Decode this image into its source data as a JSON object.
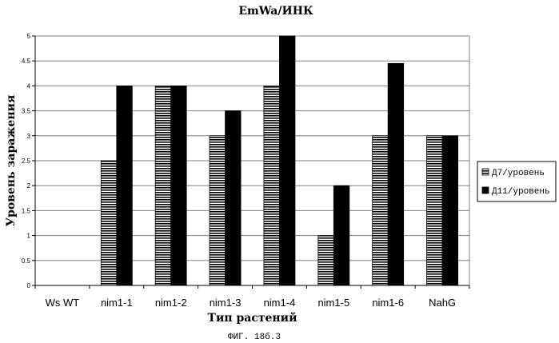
{
  "chart_data": {
    "type": "bar",
    "title": "EmWa/ИНК",
    "xlabel": "Тип растений",
    "ylabel": "Уровень заражения",
    "caption": "ФИГ. 18б.3",
    "categories": [
      "Ws WT",
      "nim1-1",
      "nim1-2",
      "nim1-3",
      "nim1-4",
      "nim1-5",
      "nim1-6",
      "NahG"
    ],
    "ylim": [
      0,
      5
    ],
    "yticks": [
      "0",
      "0.5",
      "1",
      "1.5",
      "2",
      "2.5",
      "3",
      "3.5",
      "4",
      "4.5",
      "5"
    ],
    "grid": true,
    "legend_position": "right",
    "series": [
      {
        "name": "Д7/уровень",
        "values": [
          0,
          2.5,
          4,
          3,
          4,
          1,
          3,
          3
        ],
        "pattern": "horizontal-stripes"
      },
      {
        "name": "Д11/уровень",
        "values": [
          0,
          4,
          4,
          3.5,
          5,
          2,
          4.45,
          3
        ],
        "color": "#000000"
      }
    ]
  }
}
